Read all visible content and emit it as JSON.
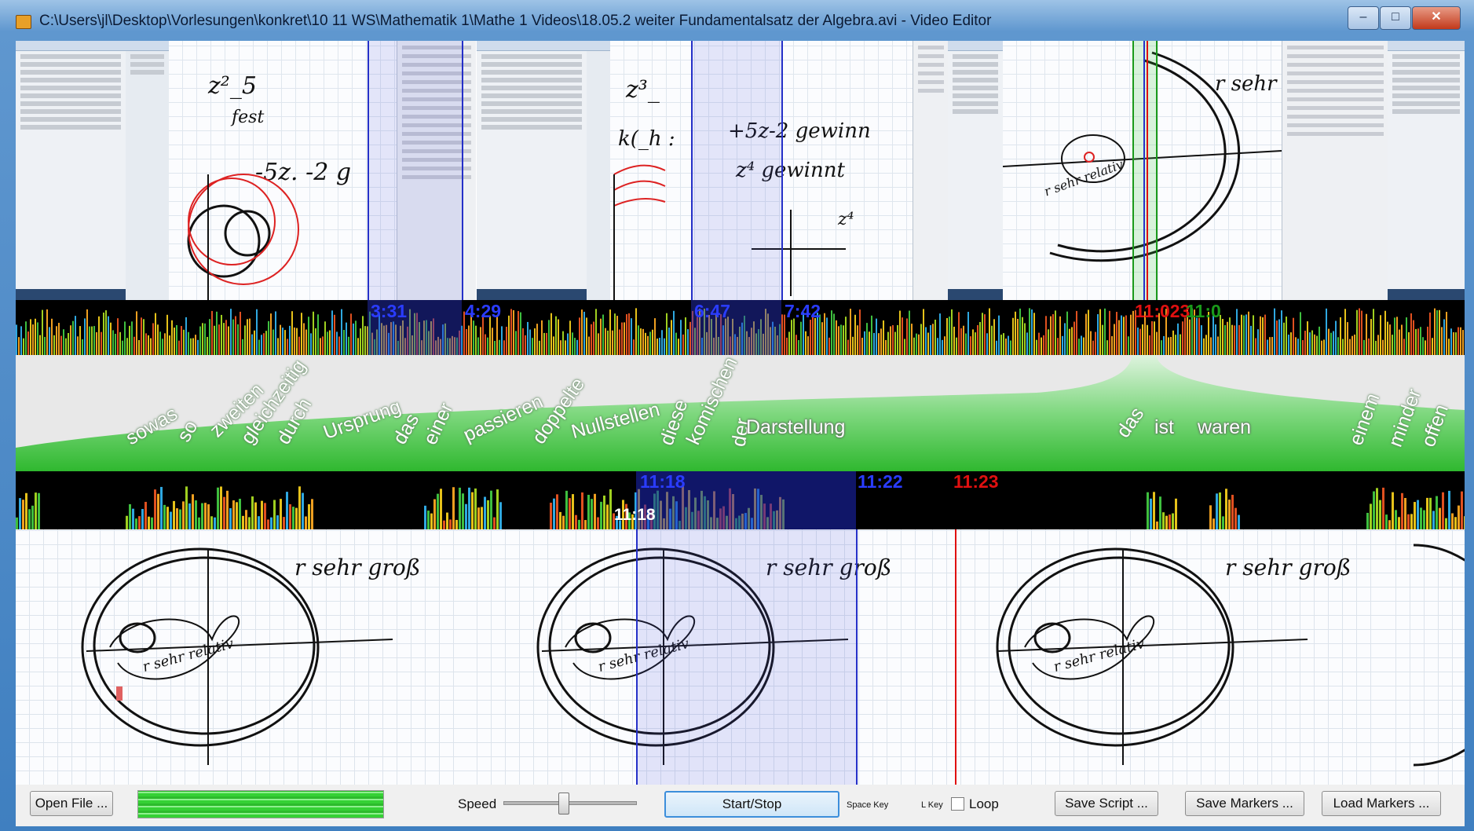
{
  "window": {
    "title": "C:\\Users\\jl\\Desktop\\Vorlesungen\\konkret\\10 11 WS\\Mathematik 1\\Mathe 1 Videos\\18.05.2 weiter Fundamentalsatz der Algebra.avi - Video Editor",
    "minimize": "–",
    "maximize": "□",
    "close": "✕"
  },
  "overview_times": {
    "t1": "3:31",
    "t2": "4:29",
    "t3": "6:47",
    "t4": "7:42",
    "t5": "11:023",
    "t6": "11:0"
  },
  "ink": {
    "a1": "z²_5",
    "a2": "fest",
    "a3": "-5z. -2 g",
    "b1": "z³_",
    "b2": "k(_h :",
    "b3": "+5z-2 gewinn",
    "b4": "z⁴ gewinnt",
    "b5": "z⁴",
    "c1": "r sehr",
    "c2": "r sehr relativ"
  },
  "words": [
    {
      "text": "sowas",
      "angle": -30
    },
    {
      "text": "so",
      "angle": -60
    },
    {
      "text": "zweiten",
      "angle": -45
    },
    {
      "text": "gleichzeitig",
      "angle": -55
    },
    {
      "text": "durch",
      "angle": -60
    },
    {
      "text": "Ursprung",
      "angle": -20
    },
    {
      "text": "das",
      "angle": -60
    },
    {
      "text": "einer",
      "angle": -65
    },
    {
      "text": "passieren",
      "angle": -25
    },
    {
      "text": "doppelte",
      "angle": -55
    },
    {
      "text": "Nullstellen",
      "angle": -15
    },
    {
      "text": "diese",
      "angle": -70
    },
    {
      "text": "komischen",
      "angle": -65
    },
    {
      "text": "der",
      "angle": -80
    },
    {
      "text": "Darstellung",
      "angle": 0
    },
    {
      "text": "das",
      "angle": -55
    },
    {
      "text": "ist",
      "angle": 0
    },
    {
      "text": "waren",
      "angle": 0
    },
    {
      "text": "einem",
      "angle": -70
    },
    {
      "text": "minder",
      "angle": -70
    },
    {
      "text": "offen",
      "angle": -70
    }
  ],
  "zoom_times": {
    "band_start": "11:18",
    "band_end": "11:22",
    "cursor": "11:23",
    "current": "11:18"
  },
  "frame_ink": {
    "label": "r sehr groß",
    "inner": "r sehr relativ"
  },
  "toolbar": {
    "open_file": "Open File ...",
    "speed_label": "Speed",
    "speed_value": 0.45,
    "start_stop": "Start/Stop",
    "space_key": "Space Key",
    "l_key": "L Key",
    "loop_label": "Loop",
    "save_script": "Save Script ...",
    "save_markers": "Save Markers ...",
    "load_markers": "Load Markers ..."
  },
  "colors": {
    "band_blue": "#2530c8",
    "cursor_red": "#e01010",
    "green_fan": "#3fbf3f",
    "selection_green": "#1a9a1a"
  }
}
